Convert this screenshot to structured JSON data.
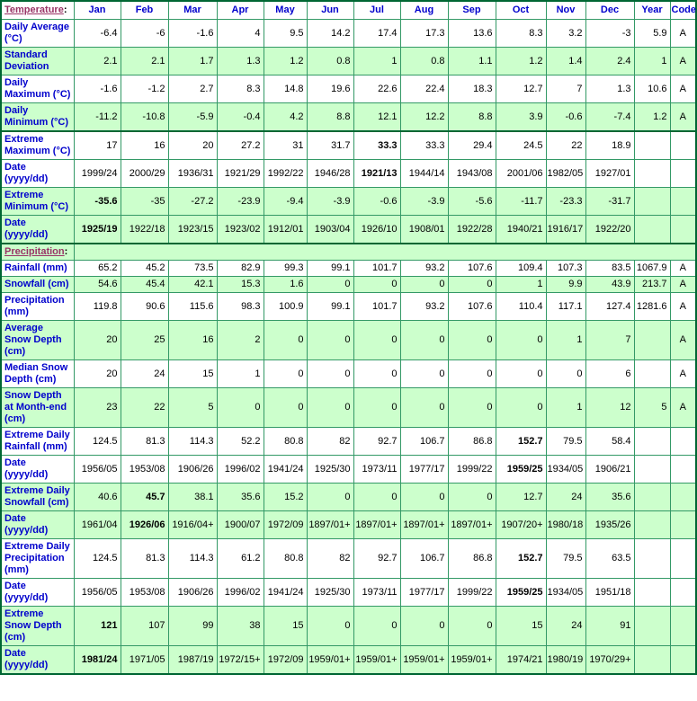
{
  "colors": {
    "shade_green": "#CCFFCC",
    "border_green": "#339966",
    "border_dark_green": "#006633",
    "header_blue": "#0000CC",
    "link_purple": "#993366",
    "value_black": "#000000"
  },
  "table": {
    "columns": [
      "Jan",
      "Feb",
      "Mar",
      "Apr",
      "May",
      "Jun",
      "Jul",
      "Aug",
      "Sep",
      "Oct",
      "Nov",
      "Dec",
      "Year",
      "Code"
    ],
    "rows": [
      {
        "type": "header",
        "link_text": "Temperature",
        "suffix": ":",
        "shade": false
      },
      {
        "type": "data",
        "label": "Daily Average (°C)",
        "shade": false,
        "bold": [],
        "values": [
          "-6.4",
          "-6",
          "-1.6",
          "4",
          "9.5",
          "14.2",
          "17.4",
          "17.3",
          "13.6",
          "8.3",
          "3.2",
          "-3",
          "5.9",
          "A"
        ]
      },
      {
        "type": "data",
        "label": "Standard Deviation",
        "shade": true,
        "bold": [],
        "values": [
          "2.1",
          "2.1",
          "1.7",
          "1.3",
          "1.2",
          "0.8",
          "1",
          "0.8",
          "1.1",
          "1.2",
          "1.4",
          "2.4",
          "1",
          "A"
        ]
      },
      {
        "type": "data",
        "label": "Daily Maximum (°C)",
        "shade": false,
        "bold": [],
        "values": [
          "-1.6",
          "-1.2",
          "2.7",
          "8.3",
          "14.8",
          "19.6",
          "22.6",
          "22.4",
          "18.3",
          "12.7",
          "7",
          "1.3",
          "10.6",
          "A"
        ]
      },
      {
        "type": "data",
        "label": "Daily Minimum (°C)",
        "shade": true,
        "bold": [],
        "values": [
          "-11.2",
          "-10.8",
          "-5.9",
          "-0.4",
          "4.2",
          "8.8",
          "12.1",
          "12.2",
          "8.8",
          "3.9",
          "-0.6",
          "-7.4",
          "1.2",
          "A"
        ]
      },
      {
        "type": "data",
        "label": "Extreme Maximum (°C)",
        "shade": false,
        "group_top": true,
        "bold": [
          6
        ],
        "values": [
          "17",
          "16",
          "20",
          "27.2",
          "31",
          "31.7",
          "33.3",
          "33.3",
          "29.4",
          "24.5",
          "22",
          "18.9",
          "",
          ""
        ]
      },
      {
        "type": "data",
        "label": "Date (yyyy/dd)",
        "shade": false,
        "bold": [
          6
        ],
        "values": [
          "1999/24",
          "2000/29",
          "1936/31",
          "1921/29",
          "1992/22",
          "1946/28",
          "1921/13",
          "1944/14",
          "1943/08",
          "2001/06",
          "1982/05",
          "1927/01",
          "",
          ""
        ]
      },
      {
        "type": "data",
        "label": "Extreme Minimum (°C)",
        "shade": true,
        "bold": [
          0
        ],
        "values": [
          "-35.6",
          "-35",
          "-27.2",
          "-23.9",
          "-9.4",
          "-3.9",
          "-0.6",
          "-3.9",
          "-5.6",
          "-11.7",
          "-23.3",
          "-31.7",
          "",
          ""
        ]
      },
      {
        "type": "data",
        "label": "Date (yyyy/dd)",
        "shade": true,
        "bold": [
          0
        ],
        "values": [
          "1925/19",
          "1922/18",
          "1923/15",
          "1923/02",
          "1912/01",
          "1903/04",
          "1926/10",
          "1908/01",
          "1922/28",
          "1940/21",
          "1916/17",
          "1922/20",
          "",
          ""
        ]
      },
      {
        "type": "section",
        "link_text": "Precipitation",
        "suffix": ":",
        "shade": true,
        "group_top": true
      },
      {
        "type": "data",
        "label": "Rainfall (mm)",
        "shade": false,
        "bold": [],
        "values": [
          "65.2",
          "45.2",
          "73.5",
          "82.9",
          "99.3",
          "99.1",
          "101.7",
          "93.2",
          "107.6",
          "109.4",
          "107.3",
          "83.5",
          "1067.9",
          "A"
        ]
      },
      {
        "type": "data",
        "label": "Snowfall (cm)",
        "shade": true,
        "bold": [],
        "values": [
          "54.6",
          "45.4",
          "42.1",
          "15.3",
          "1.6",
          "0",
          "0",
          "0",
          "0",
          "1",
          "9.9",
          "43.9",
          "213.7",
          "A"
        ]
      },
      {
        "type": "data",
        "label": "Precipitation (mm)",
        "shade": false,
        "bold": [],
        "values": [
          "119.8",
          "90.6",
          "115.6",
          "98.3",
          "100.9",
          "99.1",
          "101.7",
          "93.2",
          "107.6",
          "110.4",
          "117.1",
          "127.4",
          "1281.6",
          "A"
        ]
      },
      {
        "type": "data",
        "label": "Average Snow Depth (cm)",
        "shade": true,
        "bold": [],
        "values": [
          "20",
          "25",
          "16",
          "2",
          "0",
          "0",
          "0",
          "0",
          "0",
          "0",
          "1",
          "7",
          "",
          "A"
        ]
      },
      {
        "type": "data",
        "label": "Median Snow Depth (cm)",
        "shade": false,
        "bold": [],
        "values": [
          "20",
          "24",
          "15",
          "1",
          "0",
          "0",
          "0",
          "0",
          "0",
          "0",
          "0",
          "6",
          "",
          "A"
        ]
      },
      {
        "type": "data",
        "label": "Snow Depth at Month-end (cm)",
        "shade": true,
        "bold": [],
        "values": [
          "23",
          "22",
          "5",
          "0",
          "0",
          "0",
          "0",
          "0",
          "0",
          "0",
          "1",
          "12",
          "5",
          "A"
        ]
      },
      {
        "type": "data",
        "label": "Extreme Daily Rainfall (mm)",
        "shade": false,
        "bold": [
          9
        ],
        "values": [
          "124.5",
          "81.3",
          "114.3",
          "52.2",
          "80.8",
          "82",
          "92.7",
          "106.7",
          "86.8",
          "152.7",
          "79.5",
          "58.4",
          "",
          ""
        ]
      },
      {
        "type": "data",
        "label": "Date (yyyy/dd)",
        "shade": false,
        "bold": [
          9
        ],
        "values": [
          "1956/05",
          "1953/08",
          "1906/26",
          "1996/02",
          "1941/24",
          "1925/30",
          "1973/11",
          "1977/17",
          "1999/22",
          "1959/25",
          "1934/05",
          "1906/21",
          "",
          ""
        ]
      },
      {
        "type": "data",
        "label": "Extreme Daily Snowfall (cm)",
        "shade": true,
        "bold": [
          1
        ],
        "values": [
          "40.6",
          "45.7",
          "38.1",
          "35.6",
          "15.2",
          "0",
          "0",
          "0",
          "0",
          "12.7",
          "24",
          "35.6",
          "",
          ""
        ]
      },
      {
        "type": "data",
        "label": "Date (yyyy/dd)",
        "shade": true,
        "bold": [
          1
        ],
        "values": [
          "1961/04",
          "1926/06",
          "1916/04+",
          "1900/07",
          "1972/09",
          "1897/01+",
          "1897/01+",
          "1897/01+",
          "1897/01+",
          "1907/20+",
          "1980/18",
          "1935/26",
          "",
          ""
        ]
      },
      {
        "type": "data",
        "label": "Extreme Daily Precipitation (mm)",
        "shade": false,
        "bold": [
          9
        ],
        "values": [
          "124.5",
          "81.3",
          "114.3",
          "61.2",
          "80.8",
          "82",
          "92.7",
          "106.7",
          "86.8",
          "152.7",
          "79.5",
          "63.5",
          "",
          ""
        ]
      },
      {
        "type": "data",
        "label": "Date (yyyy/dd)",
        "shade": false,
        "bold": [
          9
        ],
        "values": [
          "1956/05",
          "1953/08",
          "1906/26",
          "1996/02",
          "1941/24",
          "1925/30",
          "1973/11",
          "1977/17",
          "1999/22",
          "1959/25",
          "1934/05",
          "1951/18",
          "",
          ""
        ]
      },
      {
        "type": "data",
        "label": "Extreme Snow Depth (cm)",
        "shade": true,
        "bold": [
          0
        ],
        "values": [
          "121",
          "107",
          "99",
          "38",
          "15",
          "0",
          "0",
          "0",
          "0",
          "15",
          "24",
          "91",
          "",
          ""
        ]
      },
      {
        "type": "data",
        "label": "Date (yyyy/dd)",
        "shade": true,
        "bold": [
          0
        ],
        "values": [
          "1981/24",
          "1971/05",
          "1987/19",
          "1972/15+",
          "1972/09",
          "1959/01+",
          "1959/01+",
          "1959/01+",
          "1959/01+",
          "1974/21",
          "1980/19",
          "1970/29+",
          "",
          ""
        ]
      }
    ]
  }
}
